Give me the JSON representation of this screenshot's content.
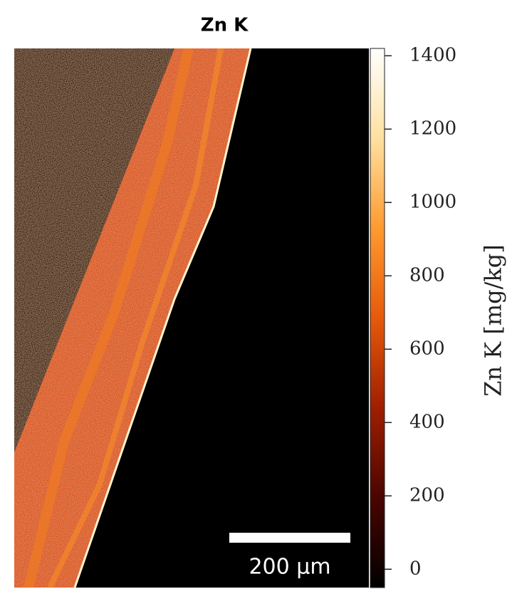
{
  "chart_data": {
    "type": "heatmap",
    "title": "Zn K",
    "colorbar": {
      "label": "Zn K  [mg/kg]",
      "clim": [
        -50,
        1420
      ],
      "ticks": [
        0,
        200,
        400,
        600,
        800,
        1000,
        1200,
        1400
      ],
      "colormap": [
        "#000000",
        "#4a0500",
        "#a01e00",
        "#e65a0a",
        "#ff9a30",
        "#ffe0a0",
        "#ffffff"
      ]
    },
    "scale_bar": {
      "label": "200 μm"
    }
  }
}
